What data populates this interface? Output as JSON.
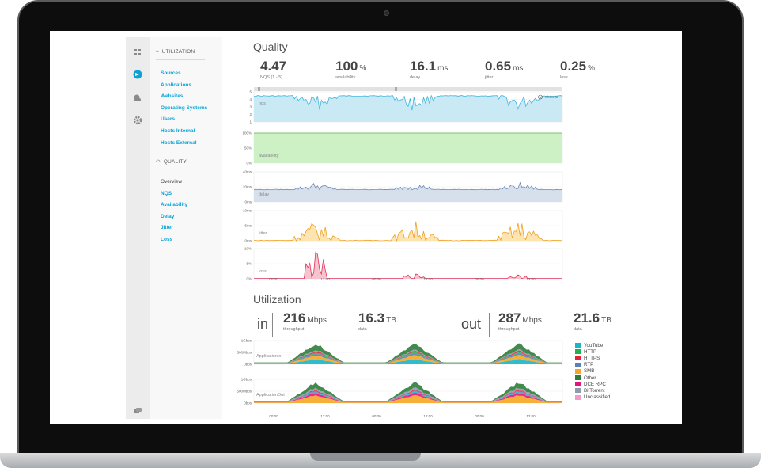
{
  "nav": {
    "utilization_header": "UTILIZATION",
    "utilization_items": [
      "Sources",
      "Applications",
      "Websites",
      "Operating Systems",
      "Users",
      "Hosts Internal",
      "Hosts External"
    ],
    "quality_header": "QUALITY",
    "quality_items": [
      "Overview",
      "NQS",
      "Availability",
      "Delay",
      "Jitter",
      "Loss"
    ]
  },
  "quality": {
    "title": "Quality",
    "metrics": [
      {
        "value": "4.47",
        "unit": "",
        "label": "NQS (1 - 5)"
      },
      {
        "value": "100",
        "unit": "%",
        "label": "availability"
      },
      {
        "value": "16.1",
        "unit": "ms",
        "label": "delay"
      },
      {
        "value": "0.65",
        "unit": "ms",
        "label": "jitter"
      },
      {
        "value": "0.25",
        "unit": "%",
        "label": "loss"
      }
    ],
    "charts": [
      {
        "label": "nqs",
        "yticks": [
          "5",
          "4",
          "3",
          "2",
          "1"
        ],
        "color": "#3fb3d9",
        "fill": "#c9e9f5"
      },
      {
        "label": "availability",
        "yticks": [
          "100%",
          "50%",
          "0%"
        ],
        "color": "#53b953",
        "fill": "#cdf0c5"
      },
      {
        "label": "delay",
        "yticks": [
          "40ms",
          "20ms",
          "0ms"
        ],
        "color": "#6b89b8",
        "fill": "#d6e0ec"
      },
      {
        "label": "jitter",
        "yticks": [
          "10ms",
          "5ms",
          "0ms"
        ],
        "color": "#f0a020",
        "fill": "#fde4b0"
      },
      {
        "label": "loss",
        "yticks": [
          "10%",
          "5%",
          "0%"
        ],
        "color": "#e0305a",
        "fill": "#f7c3cf"
      }
    ],
    "xticks": [
      "00:00",
      "12:00",
      "00:00",
      "12:00",
      "00:00",
      "12:00"
    ],
    "show_all": "Show all"
  },
  "utilization": {
    "title": "Utilization",
    "in_label": "in",
    "out_label": "out",
    "in_throughput": {
      "value": "216",
      "unit": "Mbps",
      "label": "throughput"
    },
    "in_data": {
      "value": "16.3",
      "unit": "TB",
      "label": "data"
    },
    "out_throughput": {
      "value": "287",
      "unit": "Mbps",
      "label": "throughput"
    },
    "out_data": {
      "value": "21.6",
      "unit": "TB",
      "label": "data"
    },
    "chart_in_label": "ApplicationIn",
    "chart_out_label": "ApplicationOut",
    "yticks": [
      "1Gbps",
      "500Mbps",
      "0bps"
    ],
    "xticks": [
      "00:00",
      "12:00",
      "00:00",
      "12:00",
      "00:00",
      "12:00"
    ],
    "legend": [
      {
        "name": "YouTube",
        "color": "#19b5c8"
      },
      {
        "name": "HTTP",
        "color": "#22b24c"
      },
      {
        "name": "HTTPS",
        "color": "#e5213a"
      },
      {
        "name": "RTP",
        "color": "#5f7fb7"
      },
      {
        "name": "SMB",
        "color": "#f5a623"
      },
      {
        "name": "Other",
        "color": "#2e7d3a"
      },
      {
        "name": "DCE RPC",
        "color": "#e6137e"
      },
      {
        "name": "BitTorrent",
        "color": "#8e9aaf"
      },
      {
        "name": "Unclassified",
        "color": "#f49ac7"
      }
    ]
  }
}
